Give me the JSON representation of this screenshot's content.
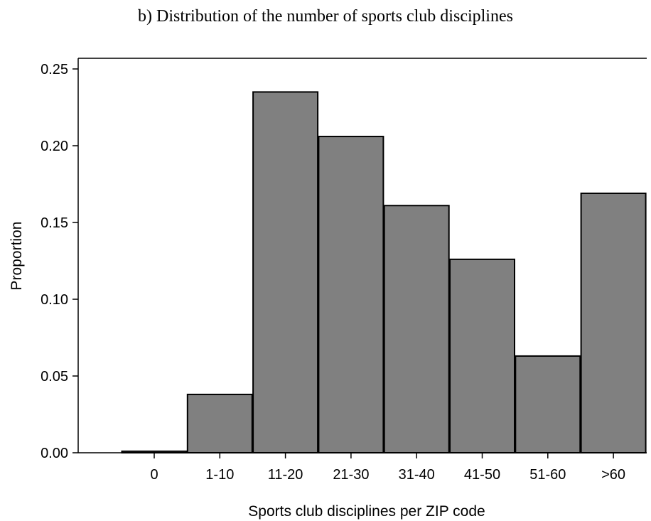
{
  "chart_data": {
    "type": "bar",
    "title": "b) Distribution of the number of sports club disciplines",
    "xlabel": "Sports club disciplines per ZIP code",
    "ylabel": "Proportion",
    "categories": [
      "0",
      "1-10",
      "11-20",
      "21-30",
      "31-40",
      "41-50",
      "51-60",
      ">60"
    ],
    "values": [
      0.001,
      0.038,
      0.235,
      0.206,
      0.161,
      0.126,
      0.063,
      0.169
    ],
    "ylim": [
      0,
      0.25
    ],
    "yticks": [
      "0.00",
      "0.05",
      "0.10",
      "0.15",
      "0.20",
      "0.25"
    ],
    "grid": false,
    "bar_color": "#808080",
    "edge_color": "#000000"
  }
}
